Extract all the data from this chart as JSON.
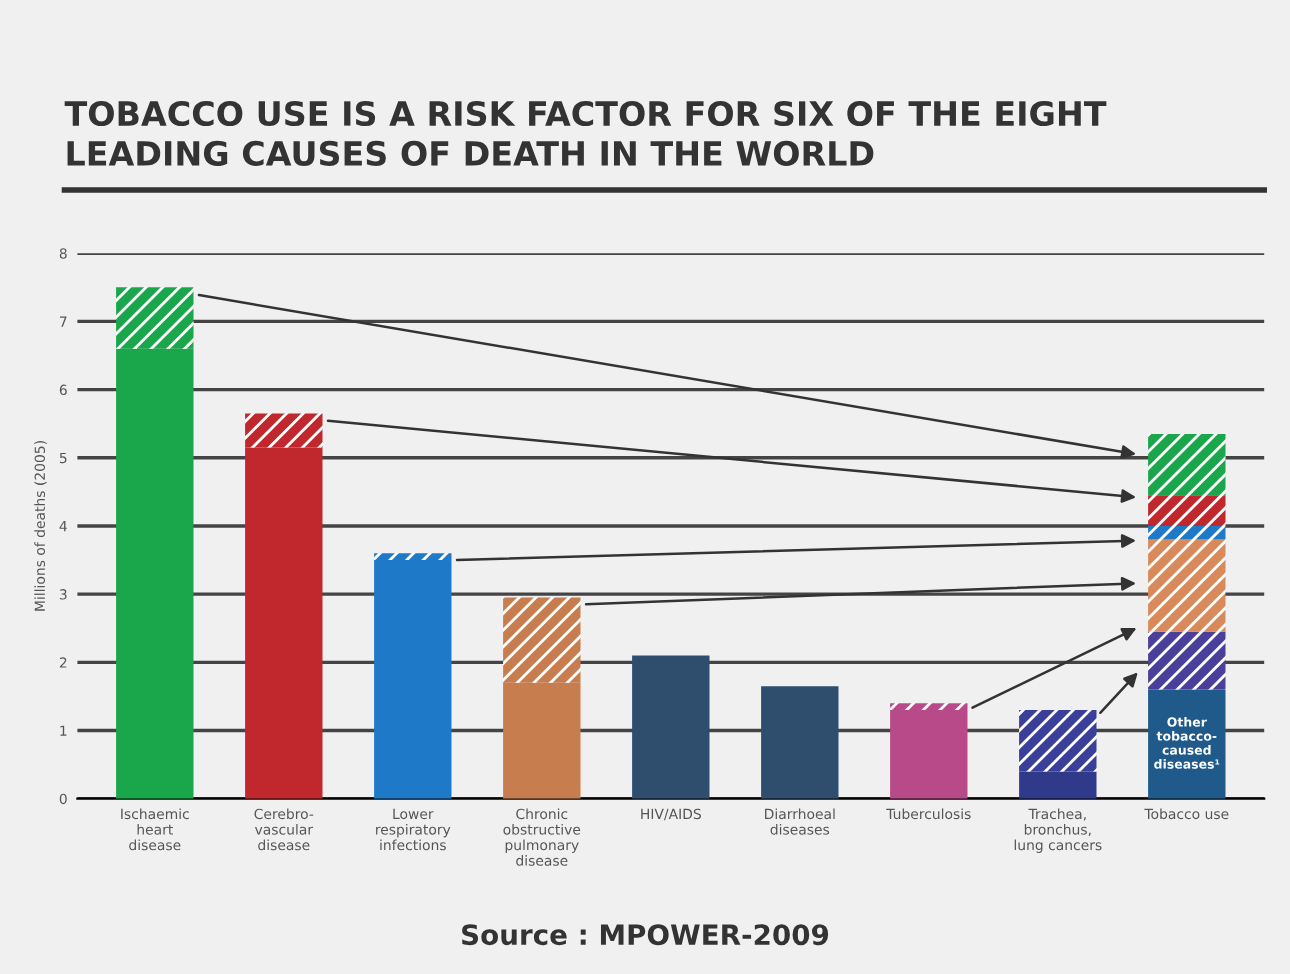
{
  "chart_data": {
    "type": "bar",
    "stacked": true,
    "title": "TOBACCO USE IS A RISK FACTOR FOR SIX OF THE EIGHT\nLEADING CAUSES OF DEATH IN THE WORLD",
    "ylabel": "Millions of deaths (2005)",
    "categories": [
      "Ischaemic\nheart\ndisease",
      "Cerebro-\nvascular\ndisease",
      "Lower\nrespiratory\ninfections",
      "Chronic\nobstructive\npulmonary\ndisease",
      "HIV/AIDS",
      "Diarrhoeal\ndiseases",
      "Tuberculosis",
      "Trachea,\nbronchus,\nlung cancers",
      "Tobacco use"
    ],
    "series": [
      {
        "values": [
          6.6,
          5.15,
          3.5,
          1.7,
          2.1,
          1.65,
          1.3,
          0.4,
          1.6
        ],
        "colors": [
          "#1aa64a",
          "#c0282d",
          "#1e7ac8",
          "#c87d4f",
          "#2f4e6e",
          "#2f4e6e",
          "#b84a8a",
          "#2f3a8a",
          "#1f5a8a"
        ]
      },
      {
        "values": [
          0.9,
          0.5,
          0.1,
          1.25,
          null,
          null,
          0.1,
          0.9,
          0.85
        ],
        "colors": [
          "#1aa64a",
          "#c0282d",
          "#1e7ac8",
          "#c87d4f",
          "#2f4e6e",
          "#2f4e6e",
          "#b84a8a",
          "#3a3f9a",
          "#4a3f9a"
        ]
      },
      {
        "values": [
          null,
          null,
          null,
          null,
          null,
          null,
          null,
          null,
          1.35
        ],
        "color": "#d88a5a"
      },
      {
        "values": [
          null,
          null,
          null,
          null,
          null,
          null,
          null,
          null,
          0.2
        ],
        "color": "#1e7ac8"
      },
      {
        "values": [
          null,
          null,
          null,
          null,
          null,
          null,
          null,
          null,
          0.45
        ],
        "color": "#c0282d"
      },
      {
        "values": [
          null,
          null,
          null,
          null,
          null,
          null,
          null,
          null,
          0.9
        ],
        "color": "#1aa64a"
      }
    ],
    "ylim": [
      0,
      8
    ],
    "yticks": [
      0,
      1,
      2,
      3,
      4,
      5,
      6,
      7,
      8
    ],
    "grid": "y",
    "annotations": [
      "Other\ntobacco-\ncaused\ndiseases¹",
      "Source : MPOWER-2009"
    ]
  }
}
